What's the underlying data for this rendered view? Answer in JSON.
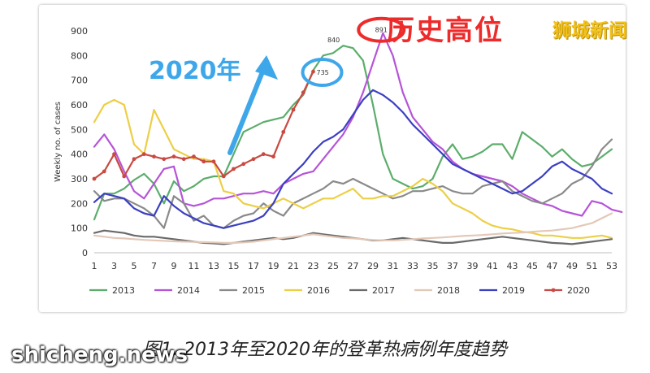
{
  "caption": "图1. 2013年至2020年的登革热病例年度趋势",
  "annotations": {
    "record_label": "历史高位",
    "year_label": "2020年",
    "peak_value": "891",
    "value_2020": "735",
    "value_2013": "840"
  },
  "watermarks": {
    "top_right": "狮城新闻",
    "bottom_left": "shicheng.news"
  },
  "colors": {
    "annotation_red": "#ee2b2b",
    "annotation_blue": "#3ea7ea"
  },
  "chart_data": {
    "type": "line",
    "ylabel": "Weekly no. of cases",
    "xlabel": "",
    "ylim": [
      0,
      900
    ],
    "yticks": [
      0,
      100,
      200,
      300,
      400,
      500,
      600,
      700,
      800,
      900
    ],
    "xlim": [
      1,
      53
    ],
    "xticks": [
      1,
      3,
      5,
      7,
      9,
      11,
      13,
      15,
      17,
      19,
      21,
      23,
      25,
      27,
      29,
      31,
      33,
      35,
      37,
      39,
      41,
      43,
      45,
      47,
      49,
      51,
      53
    ],
    "grid": false,
    "legend_position": "bottom",
    "series": [
      {
        "name": "2013",
        "color": "#5cad6c",
        "x_start": 1,
        "values": [
          135,
          240,
          240,
          260,
          295,
          320,
          280,
          200,
          290,
          250,
          270,
          300,
          310,
          310,
          400,
          490,
          510,
          530,
          540,
          550,
          600,
          640,
          740,
          800,
          810,
          840,
          830,
          780,
          600,
          400,
          300,
          280,
          260,
          270,
          300,
          390,
          440,
          380,
          390,
          410,
          440,
          440,
          380,
          490,
          460,
          430,
          390,
          420,
          380,
          350,
          360,
          390,
          420
        ]
      },
      {
        "name": "2014",
        "color": "#b654d8",
        "x_start": 1,
        "values": [
          430,
          480,
          420,
          330,
          250,
          220,
          280,
          340,
          350,
          200,
          190,
          200,
          220,
          220,
          230,
          240,
          240,
          250,
          240,
          280,
          300,
          320,
          330,
          380,
          430,
          480,
          550,
          650,
          770,
          891,
          800,
          650,
          550,
          500,
          450,
          420,
          370,
          340,
          320,
          310,
          300,
          290,
          270,
          240,
          220,
          200,
          190,
          170,
          160,
          150,
          210,
          200,
          175,
          165
        ]
      },
      {
        "name": "2015",
        "color": "#8a8a8a",
        "x_start": 1,
        "values": [
          250,
          210,
          220,
          220,
          200,
          180,
          150,
          100,
          230,
          200,
          130,
          150,
          110,
          100,
          130,
          150,
          160,
          200,
          170,
          150,
          200,
          220,
          240,
          260,
          290,
          280,
          300,
          280,
          260,
          240,
          220,
          230,
          250,
          250,
          260,
          270,
          250,
          240,
          240,
          270,
          280,
          290,
          250,
          230,
          210,
          200,
          220,
          240,
          280,
          300,
          350,
          420,
          460
        ]
      },
      {
        "name": "2016",
        "color": "#eccf45",
        "x_start": 1,
        "values": [
          530,
          600,
          620,
          600,
          440,
          400,
          580,
          500,
          420,
          400,
          380,
          380,
          370,
          250,
          240,
          200,
          190,
          180,
          200,
          220,
          200,
          180,
          200,
          220,
          220,
          240,
          260,
          220,
          220,
          230,
          230,
          250,
          270,
          300,
          280,
          250,
          200,
          180,
          160,
          130,
          110,
          100,
          95,
          85,
          80,
          70,
          70,
          65,
          60,
          60,
          65,
          70,
          60
        ]
      },
      {
        "name": "2017",
        "color": "#6a6a6a",
        "x_start": 1,
        "values": [
          80,
          90,
          85,
          80,
          70,
          65,
          65,
          60,
          55,
          50,
          45,
          40,
          38,
          35,
          40,
          45,
          50,
          55,
          60,
          55,
          60,
          70,
          80,
          75,
          70,
          65,
          60,
          55,
          50,
          50,
          55,
          60,
          55,
          50,
          45,
          40,
          40,
          45,
          50,
          55,
          60,
          65,
          60,
          55,
          50,
          45,
          40,
          38,
          35,
          40,
          45,
          50,
          55
        ]
      },
      {
        "name": "2018",
        "color": "#e3c8b8",
        "x_start": 1,
        "values": [
          70,
          65,
          60,
          58,
          55,
          52,
          50,
          48,
          46,
          45,
          44,
          43,
          42,
          40,
          40,
          42,
          45,
          50,
          55,
          60,
          65,
          70,
          75,
          70,
          65,
          60,
          58,
          55,
          52,
          50,
          50,
          52,
          55,
          58,
          60,
          62,
          65,
          68,
          70,
          72,
          75,
          78,
          80,
          82,
          85,
          88,
          90,
          95,
          100,
          110,
          120,
          140,
          160
        ]
      },
      {
        "name": "2019",
        "color": "#3b3fc2",
        "x_start": 1,
        "values": [
          205,
          240,
          230,
          220,
          180,
          160,
          150,
          230,
          190,
          160,
          140,
          120,
          110,
          100,
          110,
          120,
          130,
          150,
          200,
          280,
          320,
          360,
          410,
          450,
          470,
          500,
          560,
          620,
          660,
          640,
          610,
          570,
          520,
          480,
          440,
          400,
          360,
          340,
          320,
          300,
          280,
          260,
          240,
          250,
          280,
          310,
          350,
          370,
          340,
          320,
          300,
          260,
          240
        ]
      },
      {
        "name": "2020",
        "color": "#c84a42",
        "x_start": 1,
        "values": [
          300,
          330,
          400,
          310,
          380,
          400,
          390,
          380,
          390,
          380,
          390,
          370,
          370,
          310,
          340,
          360,
          380,
          400,
          390,
          490,
          580,
          650,
          735
        ]
      }
    ]
  },
  "legend_names": [
    "2013",
    "2014",
    "2015",
    "2016",
    "2017",
    "2018",
    "2019",
    "2020"
  ]
}
